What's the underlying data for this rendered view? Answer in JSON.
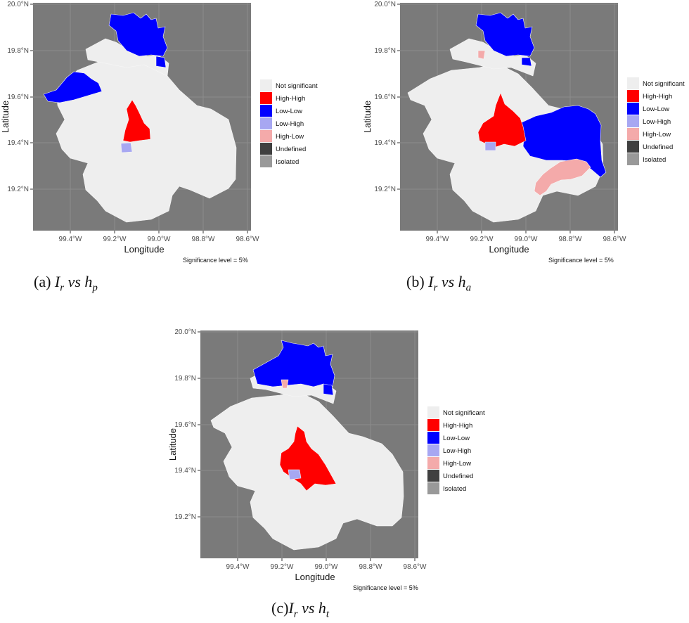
{
  "legend": {
    "items": [
      {
        "label": "Not significant",
        "color": "#eeeeee"
      },
      {
        "label": "High-High",
        "color": "#ff0000"
      },
      {
        "label": "Low-Low",
        "color": "#0000ff"
      },
      {
        "label": "Low-High",
        "color": "#a7a7f2"
      },
      {
        "label": "High-Low",
        "color": "#f4aaaa"
      },
      {
        "label": "Undefined",
        "color": "#404040"
      },
      {
        "label": "Isolated",
        "color": "#999999"
      }
    ]
  },
  "axes": {
    "x_label": "Longitude",
    "y_label": "Latitude",
    "x_ticks": [
      "99.4°W",
      "99.2°W",
      "99.0°W",
      "98.8°W",
      "98.6°W"
    ],
    "y_ticks": [
      "20.0°N",
      "19.8°N",
      "19.6°N",
      "19.4°N",
      "19.2°N"
    ],
    "x_range": [
      -99.57,
      -98.58
    ],
    "y_range": [
      19.0,
      20.0
    ]
  },
  "note": "Significance level = 5%",
  "panels": [
    {
      "id": "a",
      "caption_prefix": "(a)",
      "caption_var1": "I",
      "caption_sub1": "r",
      "caption_vs": "vs",
      "caption_var2": "h",
      "caption_sub2": "p"
    },
    {
      "id": "b",
      "caption_prefix": "(b)",
      "caption_var1": "I",
      "caption_sub1": "r",
      "caption_vs": "vs",
      "caption_var2": "h",
      "caption_sub2": "a"
    },
    {
      "id": "c",
      "caption_prefix": "(c)",
      "caption_var1": "I",
      "caption_sub1": "r",
      "caption_vs": "vs",
      "caption_var2": "h",
      "caption_sub2": "t"
    }
  ]
}
